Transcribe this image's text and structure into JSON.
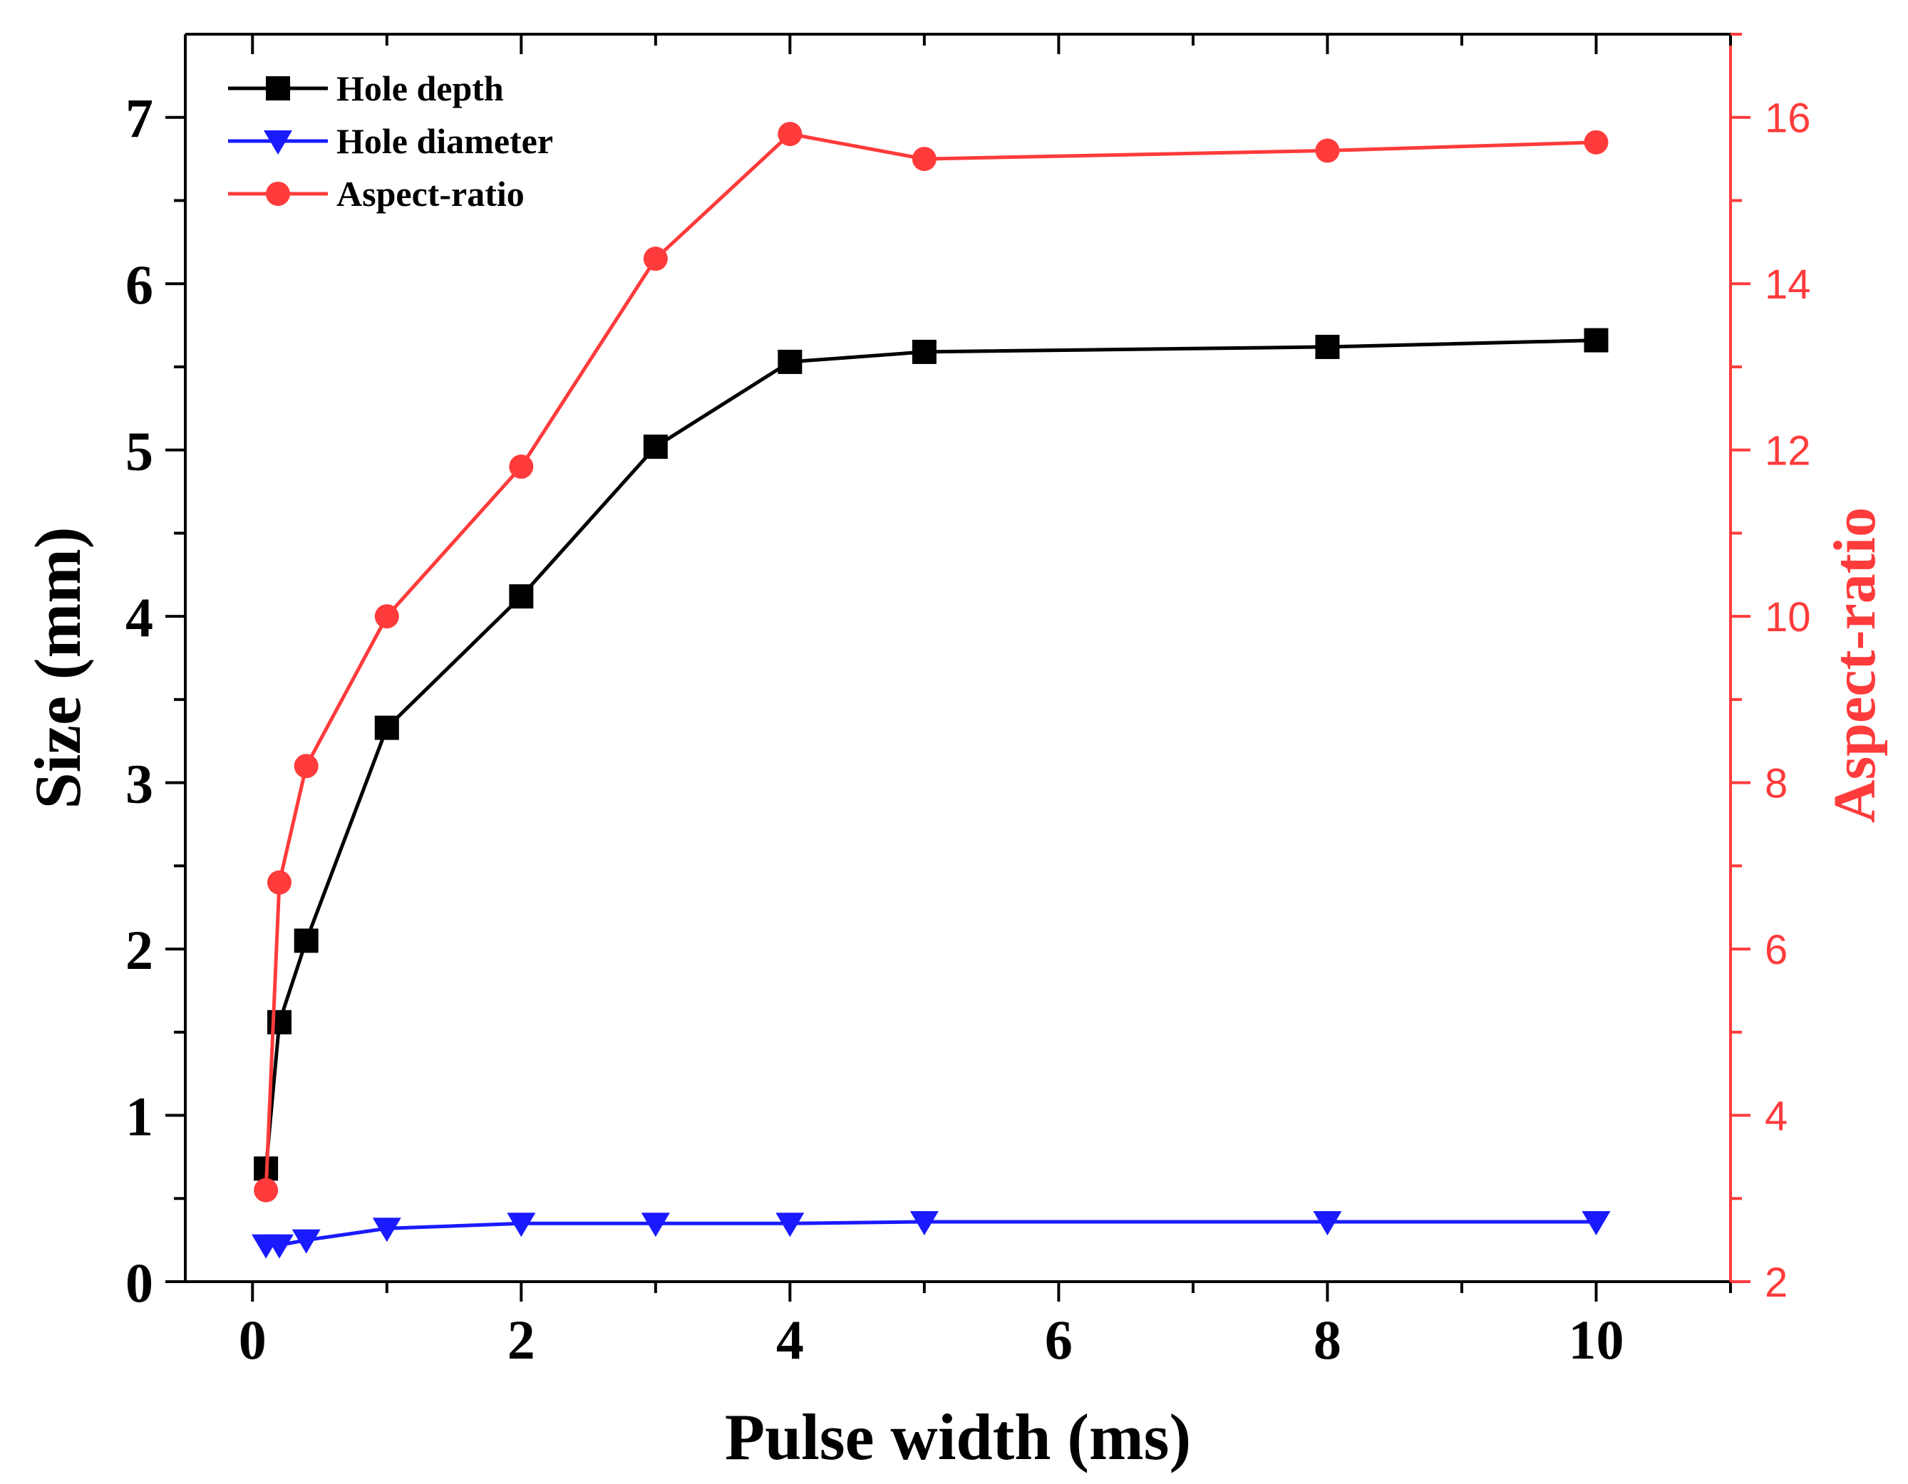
{
  "chart_data": {
    "type": "line",
    "title": "",
    "xlabel": "Pulse width (ms)",
    "ylabel": "Size (mm)",
    "y2label": "Aspect-ratio",
    "xlim": [
      -0.5,
      11
    ],
    "ylim": [
      0,
      7.5
    ],
    "y2lim": [
      2,
      17
    ],
    "xticks": [
      0,
      2,
      4,
      6,
      8,
      10
    ],
    "yticks": [
      0,
      1,
      2,
      3,
      4,
      5,
      6,
      7
    ],
    "y2ticks": [
      2,
      4,
      6,
      8,
      10,
      12,
      14,
      16
    ],
    "legend_position": "top-left",
    "series": [
      {
        "name": "Hole depth",
        "axis": "left",
        "color": "#000000",
        "marker": "square",
        "x": [
          0.1,
          0.2,
          0.4,
          1,
          2,
          3,
          4,
          5,
          8,
          10
        ],
        "values": [
          0.68,
          1.56,
          2.05,
          3.33,
          4.12,
          5.02,
          5.53,
          5.59,
          5.62,
          5.66
        ]
      },
      {
        "name": "Hole diameter",
        "axis": "left",
        "color": "#1a1aff",
        "marker": "triangle-down",
        "x": [
          0.1,
          0.2,
          0.4,
          1,
          2,
          3,
          4,
          5,
          8,
          10
        ],
        "values": [
          0.22,
          0.22,
          0.25,
          0.32,
          0.35,
          0.35,
          0.35,
          0.36,
          0.36,
          0.36
        ]
      },
      {
        "name": "Aspect-ratio",
        "axis": "right",
        "color": "#ff3b3b",
        "marker": "circle",
        "x": [
          0.1,
          0.2,
          0.4,
          1,
          2,
          3,
          4,
          5,
          8,
          10
        ],
        "values": [
          3.1,
          6.8,
          8.2,
          10.0,
          11.8,
          14.3,
          15.8,
          15.5,
          15.6,
          15.7
        ]
      }
    ]
  }
}
